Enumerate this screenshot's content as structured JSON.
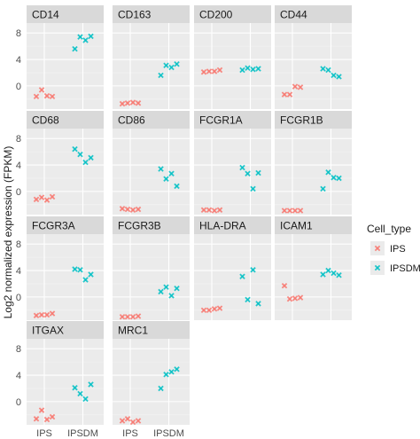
{
  "chart_data": {
    "type": "scatter",
    "ylabel": "Log2 normalized expression (FPKM)",
    "categories": [
      "IPS",
      "IPSDM"
    ],
    "y_ticks": [
      0,
      4,
      8
    ],
    "ylim": [
      -3.5,
      9.5
    ],
    "grid": true,
    "legend": {
      "title": "Cell_type",
      "position": "right",
      "entries": [
        {
          "label": "IPS",
          "color": "#f8766d",
          "marker": "x"
        },
        {
          "label": "IPSDM",
          "color": "#00bfc4",
          "marker": "x"
        }
      ]
    },
    "panels": [
      {
        "gene": "CD14",
        "IPS": [
          -1.6,
          -0.6,
          -1.5,
          -1.6
        ],
        "IPSDM": [
          5.6,
          7.4,
          6.9,
          7.5
        ]
      },
      {
        "gene": "CD163",
        "IPS": [
          -2.7,
          -2.6,
          -2.5,
          -2.6
        ],
        "IPSDM": [
          1.6,
          3.1,
          2.8,
          3.3
        ]
      },
      {
        "gene": "CD200",
        "IPS": [
          2.1,
          2.2,
          2.2,
          2.4
        ],
        "IPSDM": [
          2.4,
          2.7,
          2.5,
          2.6
        ]
      },
      {
        "gene": "CD44",
        "IPS": [
          -1.3,
          -1.3,
          -0.1,
          -0.2
        ],
        "IPSDM": [
          2.6,
          2.4,
          1.6,
          1.4
        ]
      },
      {
        "gene": "CD68",
        "IPS": [
          -1.2,
          -0.9,
          -1.3,
          -0.8
        ],
        "IPSDM": [
          6.4,
          5.6,
          4.4,
          5.1
        ]
      },
      {
        "gene": "CD86",
        "IPS": [
          -2.6,
          -2.7,
          -2.8,
          -2.7
        ],
        "IPSDM": [
          3.4,
          1.9,
          2.7,
          0.8
        ]
      },
      {
        "gene": "FCGR1A",
        "IPS": [
          -2.8,
          -2.8,
          -2.9,
          -2.8
        ],
        "IPSDM": [
          3.6,
          2.7,
          0.4,
          2.8
        ]
      },
      {
        "gene": "FCGR1B",
        "IPS": [
          -2.9,
          -2.9,
          -2.9,
          -2.9
        ],
        "IPSDM": [
          0.4,
          2.9,
          2.1,
          2.0
        ]
      },
      {
        "gene": "FCGR3A",
        "IPS": [
          -2.8,
          -2.7,
          -2.7,
          -2.5
        ],
        "IPSDM": [
          4.2,
          4.1,
          2.6,
          3.4
        ]
      },
      {
        "gene": "FCGR3B",
        "IPS": [
          -3.0,
          -3.0,
          -3.0,
          -2.9
        ],
        "IPSDM": [
          0.8,
          1.5,
          0.2,
          1.3
        ]
      },
      {
        "gene": "HLA-DRA",
        "IPS": [
          -2.0,
          -2.0,
          -1.8,
          -1.7
        ],
        "IPSDM": [
          3.1,
          -0.4,
          4.1,
          -1.0
        ]
      },
      {
        "gene": "ICAM1",
        "IPS": [
          1.7,
          -0.3,
          -0.2,
          -0.1
        ],
        "IPSDM": [
          3.4,
          4.0,
          3.6,
          3.3
        ]
      },
      {
        "gene": "ITGAX",
        "IPS": [
          -2.6,
          -1.3,
          -2.7,
          -2.3
        ],
        "IPSDM": [
          2.1,
          1.2,
          0.4,
          2.6
        ]
      },
      {
        "gene": "MRC1",
        "IPS": [
          -2.9,
          -2.6,
          -3.1,
          -2.9
        ],
        "IPSDM": [
          2.0,
          4.1,
          4.5,
          4.9
        ]
      }
    ]
  }
}
